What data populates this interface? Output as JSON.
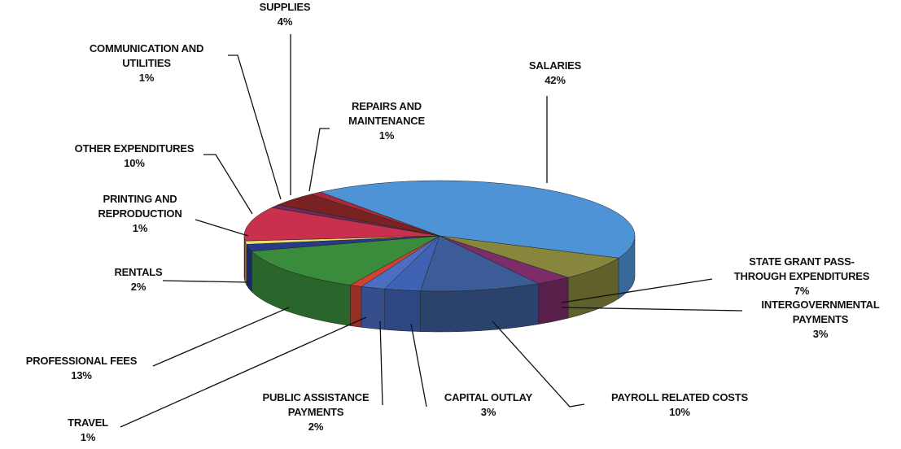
{
  "chart_data": {
    "type": "pie3d",
    "categories": [
      "SALARIES",
      "STATE GRANT PASS-THROUGH EXPENDITURES",
      "INTERGOVERNMENTAL PAYMENTS",
      "PAYROLL RELATED COSTS",
      "CAPITAL OUTLAY",
      "PUBLIC ASSISTANCE PAYMENTS",
      "TRAVEL",
      "PROFESSIONAL FEES",
      "RENTALS",
      "PRINTING AND REPRODUCTION",
      "OTHER EXPENDITURES",
      "COMMUNICATION AND UTILITIES",
      "SUPPLIES",
      "REPAIRS AND MAINTENANCE"
    ],
    "values": [
      42,
      7,
      3,
      10,
      3,
      2,
      1,
      13,
      2,
      1,
      10,
      1,
      4,
      1
    ],
    "value_labels": [
      "42%",
      "7%",
      "3%",
      "10%",
      "3%",
      "2%",
      "1%",
      "13%",
      "2%",
      "1%",
      "10%",
      "1%",
      "4%",
      "1%"
    ],
    "colors": [
      "#4d93d6",
      "#86863c",
      "#7c2c68",
      "#3c5c98",
      "#3f62b4",
      "#4b6dc2",
      "#d04232",
      "#3a8c3c",
      "#28398a",
      "#e6de6e",
      "#c8304e",
      "#6a2a5c",
      "#7a2222",
      "#a82a3a"
    ]
  }
}
